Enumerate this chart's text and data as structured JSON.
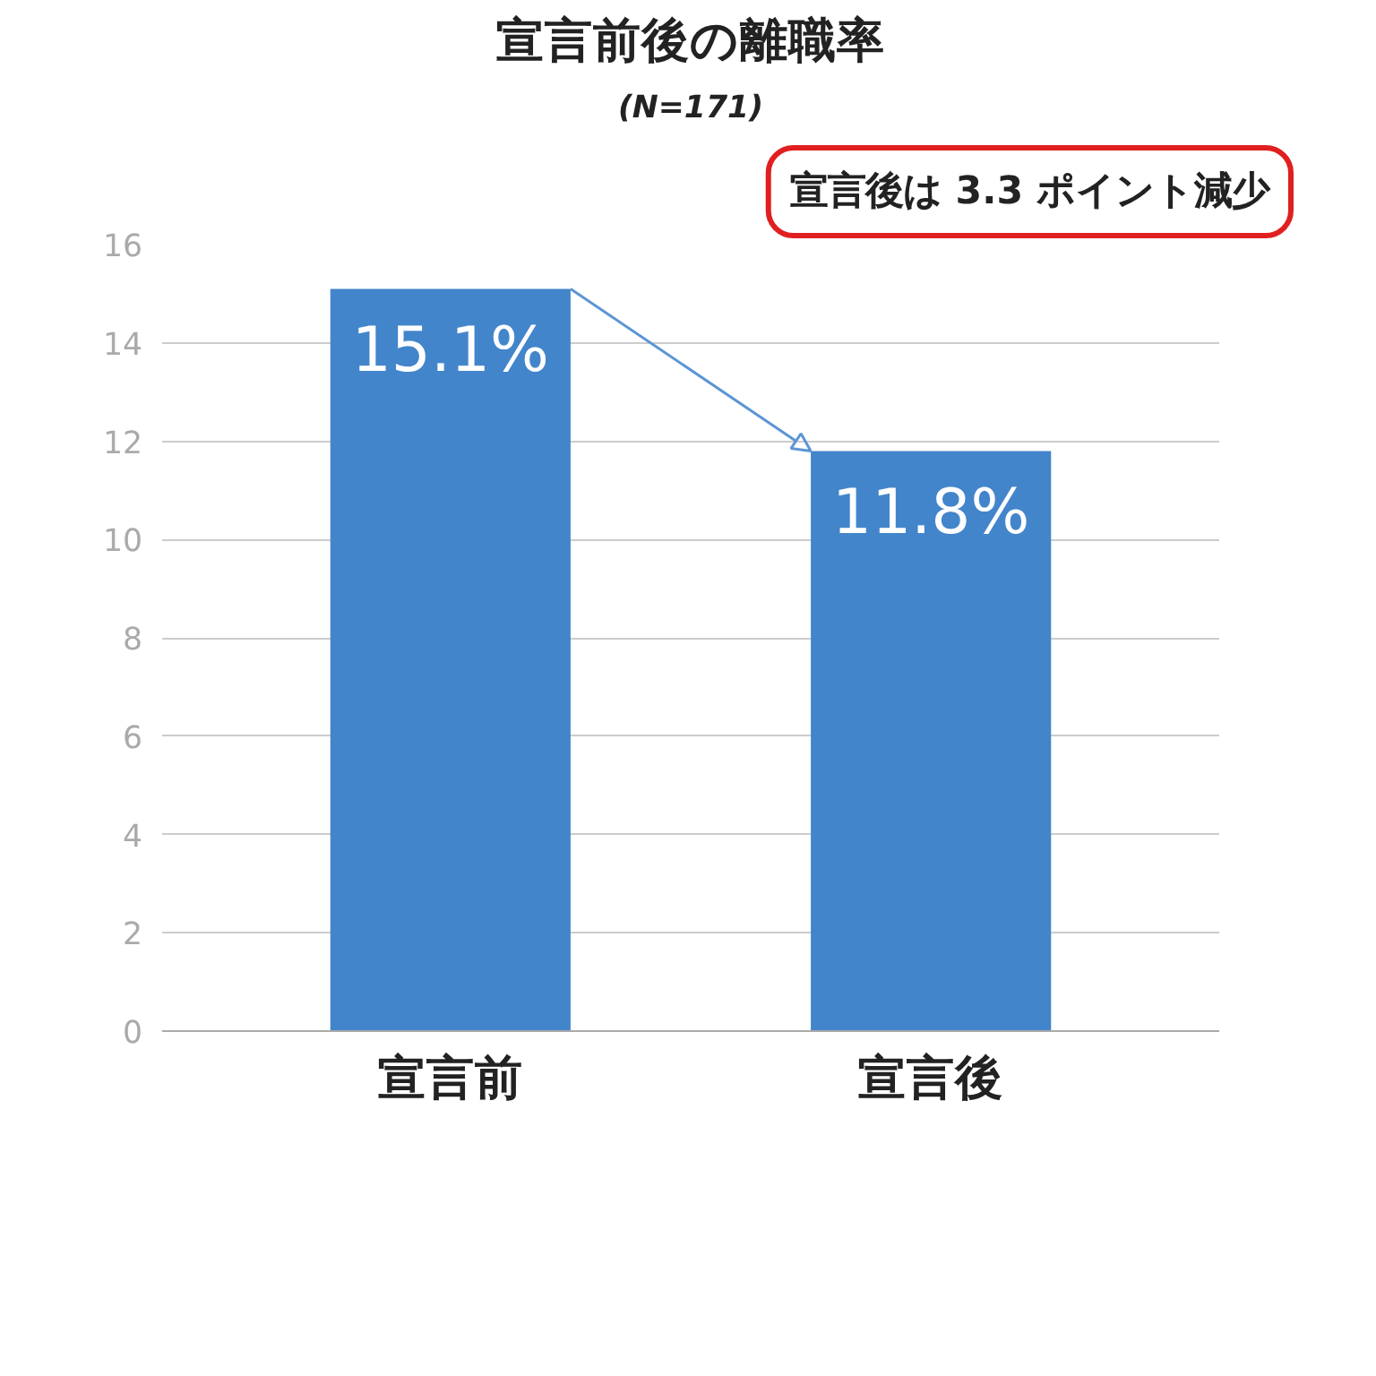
{
  "chart_data": {
    "type": "bar",
    "title": "宣言前後の離職率",
    "subtitle": "(N=171)",
    "categories": [
      "宣言前",
      "宣言後"
    ],
    "values": [
      15.1,
      11.8
    ],
    "color": "#4385cb",
    "value_labels": [
      "15.1%",
      "11.8%"
    ],
    "ylim": [
      0,
      16
    ],
    "yticks": [
      0,
      2,
      4,
      6,
      8,
      10,
      12,
      14,
      16
    ],
    "grid": "y",
    "annotations": [
      "宣言後は 3.3 ポイント減少"
    ]
  }
}
